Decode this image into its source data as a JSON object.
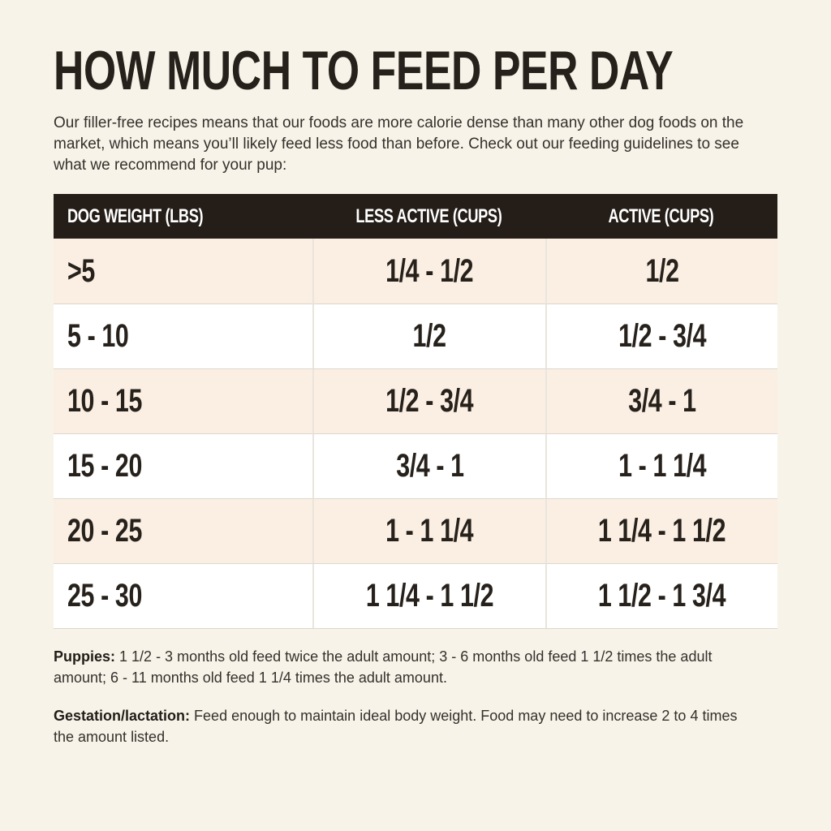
{
  "page": {
    "title": "HOW MUCH TO FEED PER DAY",
    "intro": "Our filler-free recipes means that our foods are more calorie dense than many other dog foods on the market, which means you’ll likely feed less food than before. Check out our feeding guidelines to see what we recommend for your pup:"
  },
  "table": {
    "headers": [
      "DOG WEIGHT (LBS)",
      "LESS ACTIVE (CUPS)",
      "ACTIVE (CUPS)"
    ],
    "rows": [
      [
        ">5",
        "1/4 - 1/2",
        "1/2"
      ],
      [
        "5 - 10",
        "1/2",
        "1/2 - 3/4"
      ],
      [
        "10 - 15",
        "1/2 - 3/4",
        "3/4 - 1"
      ],
      [
        "15 - 20",
        "3/4 - 1",
        "1 - 1 1/4"
      ],
      [
        "20 - 25",
        "1 - 1 1/4",
        "1 1/4 - 1 1/2"
      ],
      [
        "25 - 30",
        "1 1/4 - 1 1/2",
        "1 1/2 - 1 3/4"
      ]
    ]
  },
  "notes": [
    {
      "label": "Puppies:",
      "text": "1 1/2 - 3 months old feed twice the adult amount; 3 - 6 months old feed 1 1/2 times the adult amount; 6 - 11 months old feed 1 1/4 times the adult amount."
    },
    {
      "label": "Gestation/lactation:",
      "text": "Feed enough to maintain ideal body weight. Food may need to increase 2 to 4 times the amount listed."
    }
  ],
  "colors": {
    "page_bg": "#f8f3e9",
    "header_bg": "#241d18",
    "header_ink": "#ffffff",
    "row_cream": "#fbefe3",
    "row_white": "#ffffff",
    "ink": "#27211c"
  }
}
